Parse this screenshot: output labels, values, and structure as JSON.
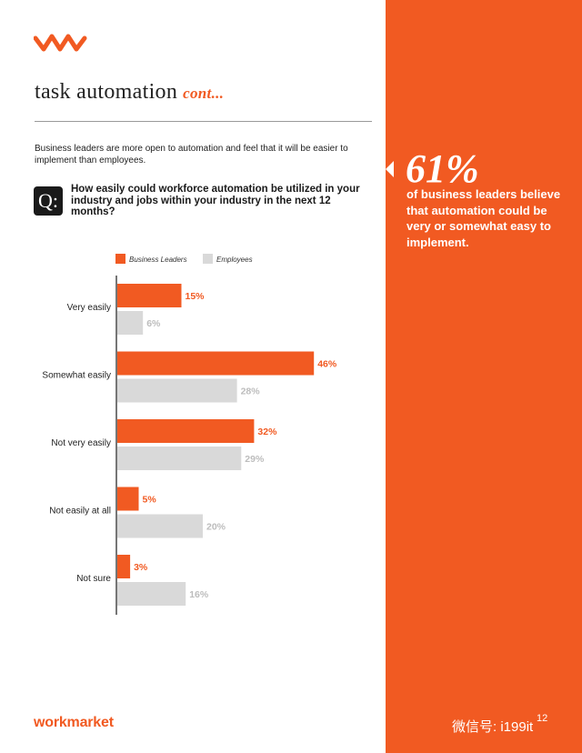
{
  "header": {
    "title": "task automation",
    "title_suffix": "cont...",
    "intro": "Business leaders are more open to automation and feel that it will be easier to implement than employees.",
    "question_badge": "Q:",
    "question": "How easily could workforce automation be utilized in your industry and jobs within your industry in the next 12 months?"
  },
  "sidebar": {
    "stat": "61%",
    "stat_text": "of business leaders believe that automation could be very or somewhat easy to implement."
  },
  "footer": {
    "brand": "workmarket",
    "watermark": "微信号: i199it",
    "page_number": "12"
  },
  "colors": {
    "accent": "#f15a22",
    "employees": "#d9d9d9",
    "text": "#222222"
  },
  "icons": {
    "logo": "wm-logo-icon",
    "callout": "left-arrow-icon"
  },
  "chart_data": {
    "type": "bar",
    "orientation": "horizontal",
    "categories": [
      "Very easily",
      "Somewhat easily",
      "Not very easily",
      "Not easily at all",
      "Not sure"
    ],
    "series": [
      {
        "name": "Business Leaders",
        "color": "#f15a22",
        "values": [
          15,
          46,
          32,
          5,
          3
        ]
      },
      {
        "name": "Employees",
        "color": "#d9d9d9",
        "values": [
          6,
          28,
          29,
          20,
          16
        ]
      }
    ],
    "value_suffix": "%",
    "legend_position": "top-left",
    "grid": false
  }
}
